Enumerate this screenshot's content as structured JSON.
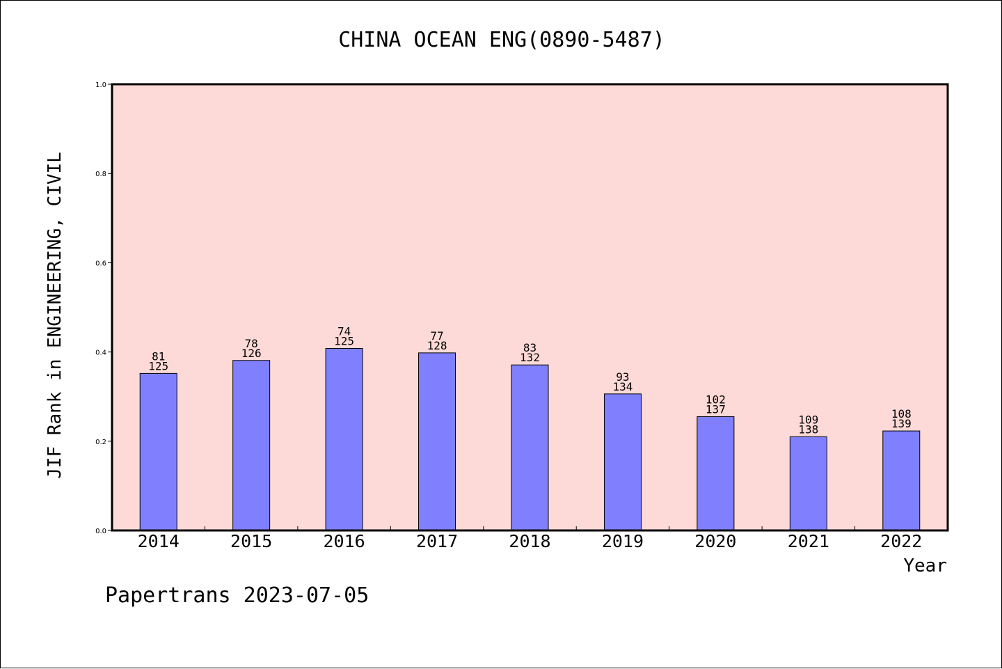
{
  "colors": {
    "plot_background": "#fddad7",
    "bar_fill": "#8080ff",
    "bar_stroke": "#000000",
    "axis": "#000000"
  },
  "footer": "Papertrans 2023-07-05",
  "chart_data": {
    "type": "bar",
    "title": "CHINA OCEAN ENG(0890-5487)",
    "xlabel": "Year",
    "ylabel": "JIF Rank in ENGINEERING, CIVIL",
    "ylim": [
      0,
      1.0
    ],
    "yticks": [
      "0.0",
      "0.2",
      "0.4",
      "0.6",
      "0.8",
      "1.0"
    ],
    "grid": false,
    "categories": [
      "2014",
      "2015",
      "2016",
      "2017",
      "2018",
      "2019",
      "2020",
      "2021",
      "2022"
    ],
    "values": [
      0.352,
      0.381,
      0.408,
      0.398,
      0.371,
      0.306,
      0.255,
      0.21,
      0.223
    ],
    "rank": [
      "81",
      "78",
      "74",
      "77",
      "83",
      "93",
      "102",
      "109",
      "108"
    ],
    "total": [
      "125",
      "126",
      "125",
      "128",
      "132",
      "134",
      "137",
      "138",
      "139"
    ]
  }
}
